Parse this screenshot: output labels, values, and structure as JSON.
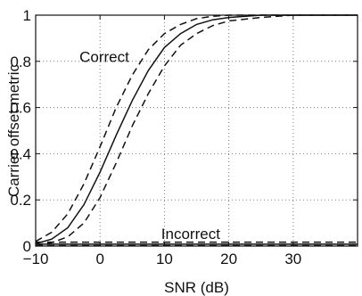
{
  "chart_data": {
    "type": "line",
    "title": "",
    "xlabel": "SNR (dB)",
    "ylabel": "Carrier offset metric",
    "xlim": [
      -10,
      40
    ],
    "ylim": [
      0,
      1
    ],
    "xticks": [
      -10,
      0,
      10,
      20,
      30
    ],
    "yticks": [
      0,
      0.2,
      0.4,
      0.6,
      0.8,
      1
    ],
    "grid": true,
    "legend": "none",
    "annotations": [
      {
        "text": "Correct",
        "x": -3.2,
        "y": 0.82
      },
      {
        "text": "Incorrect",
        "x": 9.5,
        "y": 0.055
      }
    ],
    "series": [
      {
        "style": "solid",
        "x": [
          -10,
          -7.5,
          -5,
          -2.5,
          0,
          2.5,
          5,
          7.5,
          10,
          12.5,
          15,
          17.5,
          20,
          25,
          30,
          35,
          40
        ],
        "y": [
          0.01,
          0.03,
          0.08,
          0.18,
          0.32,
          0.48,
          0.63,
          0.76,
          0.86,
          0.92,
          0.96,
          0.98,
          0.99,
          1.0,
          1.0,
          1.0,
          1.0
        ]
      },
      {
        "style": "dashed",
        "x": [
          -10,
          -7.5,
          -5,
          -2.5,
          0,
          2.5,
          5,
          7.5,
          10,
          12.5,
          15,
          17.5,
          20,
          25,
          30,
          35,
          40
        ],
        "y": [
          0.02,
          0.06,
          0.14,
          0.27,
          0.43,
          0.6,
          0.74,
          0.85,
          0.92,
          0.96,
          0.985,
          0.995,
          1.0,
          1.0,
          1.0,
          1.0,
          1.0
        ]
      },
      {
        "style": "dashed",
        "x": [
          -10,
          -7.5,
          -5,
          -2.5,
          0,
          2.5,
          5,
          7.5,
          10,
          12.5,
          15,
          17.5,
          20,
          25,
          30,
          35,
          40
        ],
        "y": [
          0.0,
          0.015,
          0.04,
          0.1,
          0.21,
          0.36,
          0.52,
          0.66,
          0.78,
          0.87,
          0.92,
          0.955,
          0.975,
          0.99,
          1.0,
          1.0,
          1.0
        ]
      },
      {
        "style": "solid",
        "x": [
          -10,
          0,
          10,
          20,
          30,
          40
        ],
        "y": [
          0.008,
          0.008,
          0.008,
          0.008,
          0.008,
          0.008
        ]
      },
      {
        "style": "dashed",
        "x": [
          -10,
          0,
          10,
          20,
          30,
          40
        ],
        "y": [
          0.017,
          0.017,
          0.017,
          0.017,
          0.017,
          0.017
        ]
      },
      {
        "style": "dashed",
        "x": [
          -10,
          0,
          10,
          20,
          30,
          40
        ],
        "y": [
          0.002,
          0.002,
          0.002,
          0.002,
          0.002,
          0.002
        ]
      }
    ]
  }
}
